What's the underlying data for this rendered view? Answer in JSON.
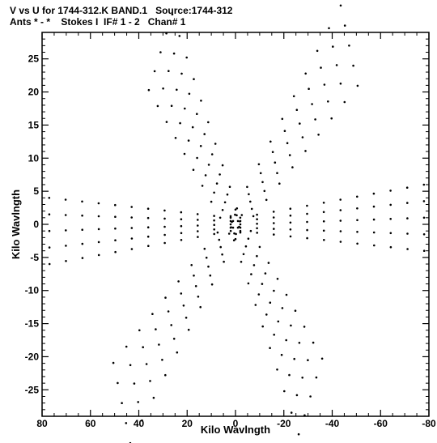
{
  "header": {
    "line1": "V vs U for 1744-312.K BAND.1   Source:1744-312",
    "line2": "Ants * - *    Stokes I  IF# 1 - 2   Chan# 1"
  },
  "chart_data": {
    "type": "scatter",
    "title": "V vs U for 1744-312.K BAND.1   Source:1744-312",
    "subtitle": "Ants * - *    Stokes I  IF# 1 - 2   Chan# 1",
    "xlabel": "Kilo Wavlngth",
    "ylabel": "Kilo Wavlngth",
    "xlim": [
      80,
      -80
    ],
    "ylim": [
      -29,
      29
    ],
    "x_ticks": [
      80,
      60,
      40,
      20,
      0,
      -20,
      -40,
      -60,
      -80
    ],
    "x_tick_labels": [
      "80",
      "60",
      "40",
      "20",
      "0",
      "-20",
      "-40",
      "-60",
      "-80"
    ],
    "y_ticks": [
      -25,
      -20,
      -15,
      -10,
      -5,
      0,
      5,
      10,
      15,
      20,
      25
    ],
    "y_tick_labels": [
      "-25",
      "-20",
      "-15",
      "-10",
      "-5",
      "0",
      "5",
      "10",
      "15",
      "20",
      "25"
    ],
    "grid": false,
    "marker_color": "#000000",
    "arms": [
      {
        "start": [
          1,
          0.5
        ],
        "end": [
          31,
          26
        ],
        "width": [
          5,
          15
        ],
        "rows": 9
      },
      {
        "start": [
          -1,
          0.5
        ],
        "end": [
          -47,
          27
        ],
        "width": [
          4,
          14
        ],
        "rows": 9
      },
      {
        "start": [
          -2,
          0
        ],
        "end": [
          -78,
          1
        ],
        "width": [
          2,
          10
        ],
        "rows": 11
      },
      {
        "start": [
          2,
          0
        ],
        "end": [
          77,
          -1
        ],
        "width": [
          2,
          10
        ],
        "rows": 11
      },
      {
        "start": [
          -1,
          -0.5
        ],
        "end": [
          -31,
          -26
        ],
        "width": [
          5,
          15
        ],
        "rows": 9
      },
      {
        "start": [
          1,
          -0.5
        ],
        "end": [
          47,
          -27
        ],
        "width": [
          4,
          14
        ],
        "rows": 9
      }
    ]
  }
}
